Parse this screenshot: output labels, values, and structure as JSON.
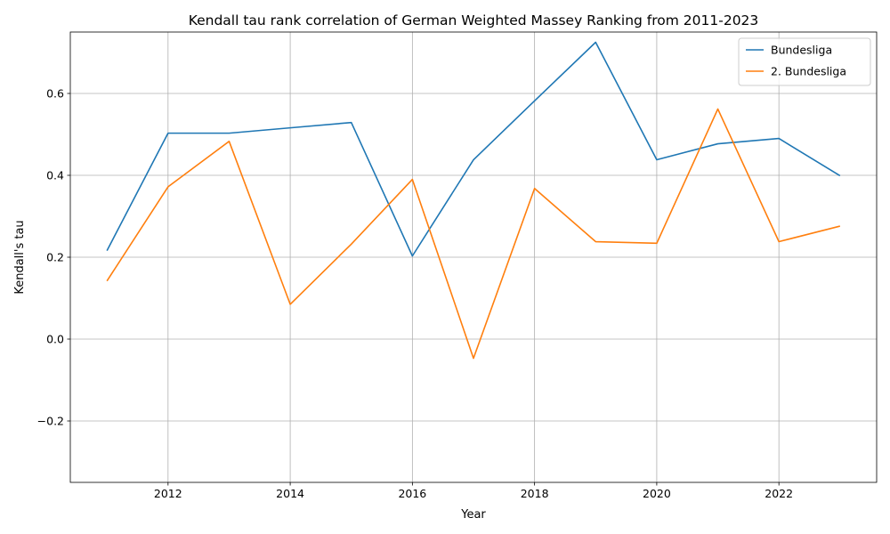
{
  "chart_data": {
    "type": "line",
    "title": "Kendall tau rank correlation of German Weighted Massey Ranking from 2011-2023",
    "xlabel": "Year",
    "ylabel": "Kendall's tau",
    "x": [
      2011,
      2012,
      2013,
      2014,
      2015,
      2016,
      2017,
      2018,
      2019,
      2020,
      2021,
      2022,
      2023
    ],
    "xlim": [
      2010.4,
      2023.6
    ],
    "ylim": [
      -0.35,
      0.75
    ],
    "xticks": [
      2012,
      2014,
      2016,
      2018,
      2020,
      2022
    ],
    "xtick_labels": [
      "2012",
      "2014",
      "2016",
      "2018",
      "2020",
      "2022"
    ],
    "yticks": [
      -0.2,
      0.0,
      0.2,
      0.4,
      0.6
    ],
    "ytick_labels": [
      "−0.2",
      "0.0",
      "0.2",
      "0.4",
      "0.6"
    ],
    "grid": true,
    "legend_position": "top-right",
    "series": [
      {
        "name": "Bundesliga",
        "color": "#1f77b4",
        "values": [
          0.216,
          0.503,
          0.503,
          0.516,
          0.529,
          0.203,
          0.438,
          0.582,
          0.725,
          0.438,
          0.477,
          0.49,
          0.399
        ]
      },
      {
        "name": "2. Bundesliga",
        "color": "#ff7f0e",
        "values": [
          0.142,
          0.372,
          0.483,
          0.085,
          0.232,
          0.39,
          -0.047,
          0.368,
          0.238,
          0.234,
          0.562,
          0.238,
          0.276
        ]
      }
    ]
  }
}
